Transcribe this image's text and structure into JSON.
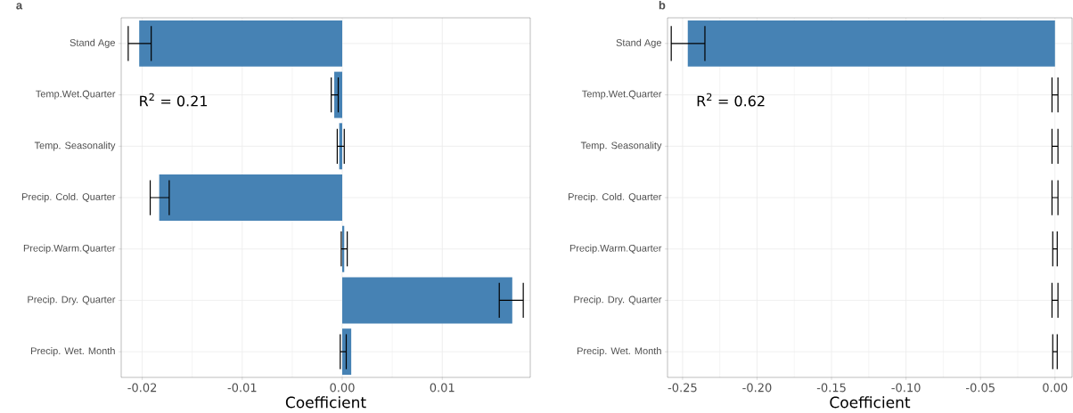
{
  "chart_data": [
    {
      "type": "bar",
      "orientation": "horizontal",
      "title": "a",
      "xlabel": "Coefficient",
      "categories": [
        "Stand Age",
        "Temp.Wet.Quarter",
        "Temp. Seasonality",
        "Precip. Cold. Quarter",
        "Precip.Warm.Quarter",
        "Precip. Dry. Quarter",
        "Precip. Wet. Month"
      ],
      "values": [
        -0.0203,
        -0.0008,
        -0.0003,
        -0.0183,
        0.0002,
        0.017,
        0.0009
      ],
      "errors": [
        [
          -0.0214,
          -0.0191
        ],
        [
          -0.0011,
          -0.0004
        ],
        [
          -0.0005,
          0.0002
        ],
        [
          -0.0192,
          -0.0173
        ],
        [
          -0.0001,
          0.0005
        ],
        [
          0.0157,
          0.0181
        ],
        [
          -0.0002,
          0.0004
        ]
      ],
      "color": "#4682b4",
      "xlim": [
        -0.0221,
        0.0188
      ],
      "xticks": [
        {
          "value": -0.02,
          "label": "-0.02"
        },
        {
          "value": -0.01,
          "label": "-0.01"
        },
        {
          "value": 0,
          "label": "0.00"
        },
        {
          "value": 0.01,
          "label": "0.01"
        }
      ],
      "annotations": [
        "R$^{2}$ = 0.21"
      ],
      "grid": true
    },
    {
      "type": "bar",
      "orientation": "horizontal",
      "title": "b",
      "xlabel": "Coefficient",
      "categories": [
        "Stand Age",
        "Temp.Wet.Quarter",
        "Temp. Seasonality",
        "Precip. Cold. Quarter",
        "Precip.Warm.Quarter",
        "Precip. Dry. Quarter",
        "Precip. Wet. Month"
      ],
      "values": [
        -0.2465,
        0,
        0,
        0,
        0,
        0,
        0
      ],
      "errors": [
        [
          -0.2576,
          -0.235
        ],
        [
          -0.002,
          0.002
        ],
        [
          -0.002,
          0.002
        ],
        [
          -0.002,
          0.002
        ],
        [
          -0.0015,
          0.0015
        ],
        [
          -0.002,
          0.002
        ],
        [
          -0.0015,
          0.0015
        ]
      ],
      "color": "#4682b4",
      "xlim": [
        -0.2601,
        0.0115
      ],
      "xticks": [
        {
          "value": -0.25,
          "label": "-0.25"
        },
        {
          "value": -0.2,
          "label": "-0.20"
        },
        {
          "value": -0.15,
          "label": "-0.15"
        },
        {
          "value": -0.1,
          "label": "-0.10"
        },
        {
          "value": -0.05,
          "label": "-0.05"
        },
        {
          "value": 0,
          "label": "0.00"
        }
      ],
      "annotations": [
        "R$^{2}$ = 0.62"
      ],
      "grid": true
    }
  ]
}
